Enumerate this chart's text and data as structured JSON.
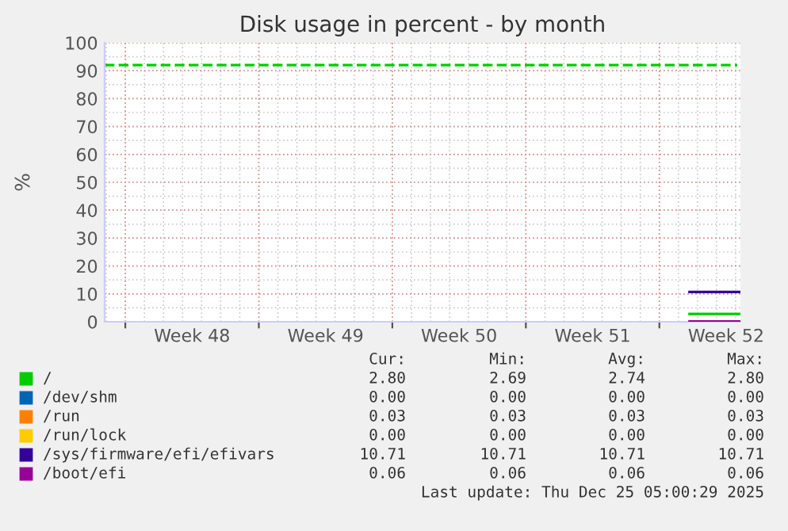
{
  "chart_data": {
    "type": "line",
    "title": "Disk usage in percent - by month",
    "ylabel": "%",
    "xlim": [
      "2025-11-22T22:00",
      "2025-12-26T06:00"
    ],
    "xticks": [
      {
        "value": "2025-11-24",
        "label": null
      },
      {
        "value": "2025-11-27T12:00",
        "label": "Week 48"
      },
      {
        "value": "2025-12-01",
        "label": null
      },
      {
        "value": "2025-12-04T12:00",
        "label": "Week 49"
      },
      {
        "value": "2025-12-08",
        "label": null
      },
      {
        "value": "2025-12-11T12:00",
        "label": "Week 50"
      },
      {
        "value": "2025-12-15",
        "label": null
      },
      {
        "value": "2025-12-18T12:00",
        "label": "Week 51"
      },
      {
        "value": "2025-12-22",
        "label": null
      },
      {
        "value": "2025-12-25T12:00",
        "label": "Week 52"
      }
    ],
    "ylim": [
      0,
      100
    ],
    "yticks": [
      0,
      10,
      20,
      30,
      40,
      50,
      60,
      70,
      80,
      90,
      100
    ],
    "grid": true,
    "legend": "bottom",
    "line_style": "solid",
    "marker": "none",
    "series": [
      {
        "name": "/",
        "color": "#00cc00",
        "x": [
          "2025-12-23T14:00",
          "2025-12-26T05:00"
        ],
        "values": [
          2.8,
          2.8
        ]
      },
      {
        "name": "/dev/shm",
        "color": "#0066b3"
      },
      {
        "name": "/run",
        "color": "#ff8000"
      },
      {
        "name": "/run/lock",
        "color": "#ffcc00"
      },
      {
        "name": "/sys/firmware/efi/efivars",
        "color": "#330099",
        "x": [
          "2025-12-23T14:00",
          "2025-12-26T05:00"
        ],
        "values": [
          10.7,
          10.7
        ]
      },
      {
        "name": "/boot/efi",
        "color": "#990099",
        "x": [
          "2025-12-23T14:00",
          "2025-12-26T05:00"
        ],
        "values": [
          0.06,
          0.06
        ]
      }
    ],
    "ref_lines": [
      {
        "axis": "y",
        "value": 92,
        "label": null,
        "color": "#00cc00",
        "line_style": "dashed"
      }
    ],
    "annotations": [
      "Cur:",
      "Min:",
      "Avg:",
      "Max:",
      "2.80",
      "2.69",
      "2.74",
      "2.80",
      "0.00",
      "0.00",
      "0.00",
      "0.00",
      "0.03",
      "0.03",
      "0.03",
      "0.03",
      "0.00",
      "0.00",
      "0.00",
      "0.00",
      "10.71",
      "10.71",
      "10.71",
      "10.71",
      "0.06",
      "0.06",
      "0.06",
      "0.06",
      "Last update: Thu Dec 25 05:00:29 2025"
    ]
  }
}
